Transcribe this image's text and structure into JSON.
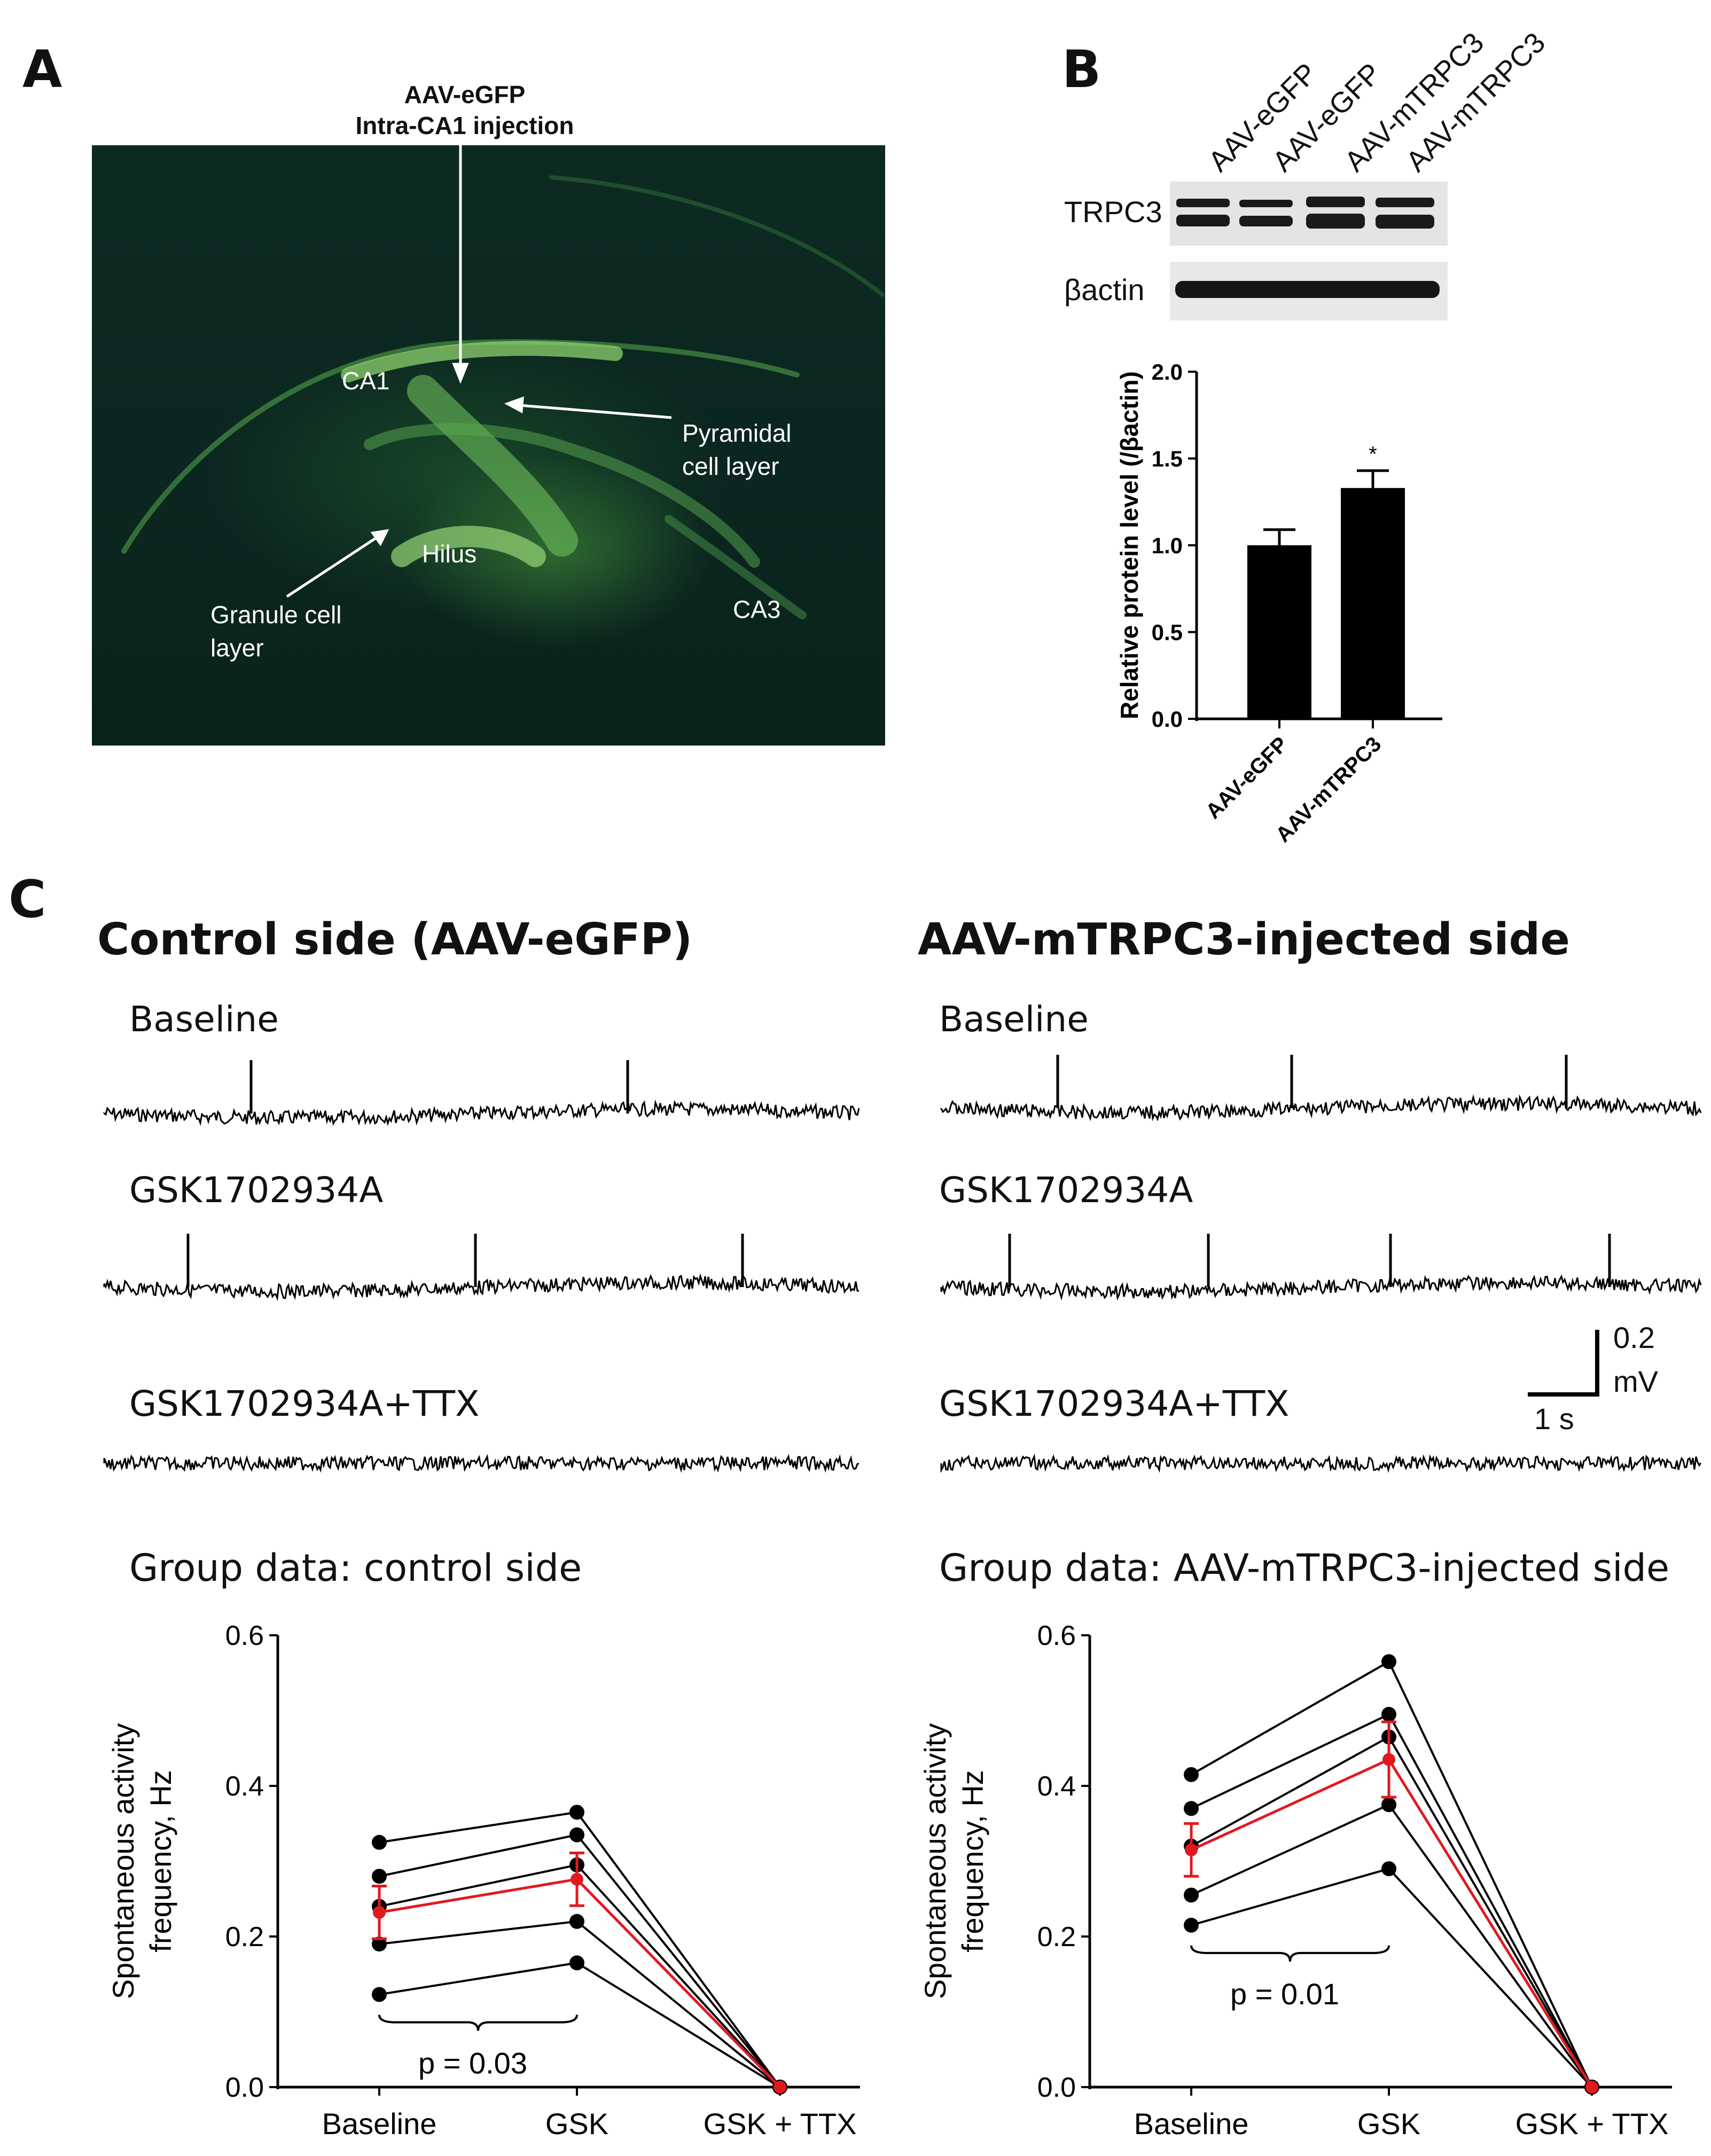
{
  "panel_a": {
    "label": "A",
    "injection_line1": "AAV-eGFP",
    "injection_line2": "Intra-CA1 injection",
    "ca1": "CA1",
    "pyramidal_line1": "Pyramidal",
    "pyramidal_line2": "cell layer",
    "hilus": "Hilus",
    "granule_line1": "Granule cell",
    "granule_line2": "layer",
    "ca3": "CA3"
  },
  "panel_b": {
    "label": "B",
    "lanes": [
      "AAV-eGFP",
      "AAV-eGFP",
      "AAV-mTRPC3",
      "AAV-mTRPC3"
    ],
    "blot_rows": [
      "TRPC3",
      "βactin"
    ],
    "significance": "*",
    "colors": {
      "bar": "#000000",
      "blot_bg": "#e4e4e4"
    }
  },
  "panel_c": {
    "label": "C",
    "left_header": "Control side (AAV-eGFP)",
    "right_header": "AAV-mTRPC3-injected side",
    "conditions": [
      "Baseline",
      "GSK1702934A",
      "GSK1702934A+TTX"
    ],
    "scale_bar_value": "0.2",
    "scale_bar_unit": "mV",
    "scale_bar_time": "1 s",
    "left_group_title": "Group data: control side",
    "right_group_title": "Group data: AAV-mTRPC3-injected side",
    "left_p": "p = 0.03",
    "right_p": "p = 0.01",
    "colors": {
      "individual": "#000000",
      "mean": "#e0191f"
    }
  },
  "chart_data": [
    {
      "type": "bar",
      "categories": [
        "AAV-eGFP",
        "AAV-mTRPC3"
      ],
      "values": [
        1.0,
        1.33
      ],
      "errors": [
        0.09,
        0.1
      ],
      "xlabel": "",
      "ylabel": "Relative protein level (/βactin)",
      "ylim": [
        0,
        2.0
      ],
      "yticks": [
        "0.0",
        "0.5",
        "1.0",
        "1.5",
        "2.0"
      ],
      "annotations": [
        "*"
      ]
    },
    {
      "type": "line",
      "title": "Group data: control side",
      "categories": [
        "Baseline",
        "GSK",
        "GSK + TTX"
      ],
      "ylabel": "Spontaneous activity frequency, Hz",
      "ylim": [
        0,
        0.6
      ],
      "yticks": [
        "0.0",
        "0.2",
        "0.4",
        "0.6"
      ],
      "series": [
        {
          "values": [
            0.325,
            0.365,
            0.0
          ]
        },
        {
          "values": [
            0.28,
            0.335,
            0.0
          ]
        },
        {
          "values": [
            0.24,
            0.295,
            0.0
          ]
        },
        {
          "values": [
            0.19,
            0.22,
            0.0
          ]
        },
        {
          "values": [
            0.123,
            0.165,
            0.0
          ]
        }
      ],
      "mean": {
        "values": [
          0.232,
          0.276,
          0.0
        ],
        "errors": [
          0.035,
          0.035,
          0.0
        ]
      },
      "annotations": [
        "p = 0.03"
      ]
    },
    {
      "type": "line",
      "title": "Group data: AAV-mTRPC3-injected side",
      "categories": [
        "Baseline",
        "GSK",
        "GSK + TTX"
      ],
      "ylabel": "Spontaneous activity frequency, Hz",
      "ylim": [
        0,
        0.6
      ],
      "yticks": [
        "0.0",
        "0.2",
        "0.4",
        "0.6"
      ],
      "series": [
        {
          "values": [
            0.415,
            0.565,
            0.0
          ]
        },
        {
          "values": [
            0.37,
            0.495,
            0.0
          ]
        },
        {
          "values": [
            0.32,
            0.465,
            0.0
          ]
        },
        {
          "values": [
            0.255,
            0.375,
            0.0
          ]
        },
        {
          "values": [
            0.215,
            0.29,
            0.0
          ]
        }
      ],
      "mean": {
        "values": [
          0.315,
          0.435,
          0.0
        ],
        "errors": [
          0.035,
          0.05,
          0.0
        ]
      },
      "annotations": [
        "p = 0.01"
      ]
    }
  ]
}
